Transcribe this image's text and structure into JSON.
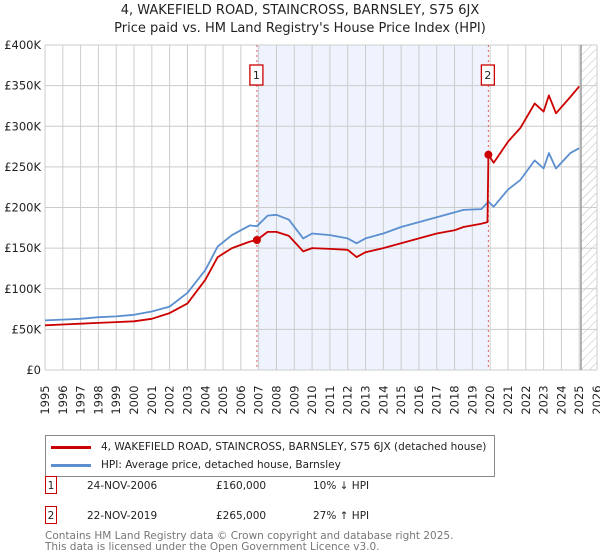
{
  "title": "4, WAKEFIELD ROAD, STAINCROSS, BARNSLEY, S75 6JX",
  "subtitle": "Price paid vs. HM Land Registry's House Price Index (HPI)",
  "colors": {
    "property": "#cc0000",
    "hpi": "#5b8fd0",
    "shade": "#eef3fd"
  },
  "chart_data": {
    "type": "line",
    "xlim": [
      1995,
      2026
    ],
    "ylim": [
      0,
      400000
    ],
    "yticks": [
      0,
      50000,
      100000,
      150000,
      200000,
      250000,
      300000,
      350000,
      400000
    ],
    "ytick_labels": [
      "£0",
      "£50K",
      "£100K",
      "£150K",
      "£200K",
      "£250K",
      "£300K",
      "£350K",
      "£400K"
    ],
    "xtick_labels": [
      "1995",
      "1996",
      "1997",
      "1998",
      "1999",
      "2000",
      "2001",
      "2002",
      "2003",
      "2004",
      "2005",
      "2006",
      "2007",
      "2008",
      "2009",
      "2010",
      "2011",
      "2012",
      "2013",
      "2014",
      "2015",
      "2016",
      "2017",
      "2018",
      "2019",
      "2020",
      "2021",
      "2022",
      "2023",
      "2024",
      "2025",
      "2026"
    ],
    "grid": true,
    "shaded_range": [
      2006.9,
      2019.9
    ],
    "hatched_from": 2025.1,
    "series": [
      {
        "name": "4, WAKEFIELD ROAD, STAINCROSS, BARNSLEY, S75 6JX (detached house)",
        "x": [
          1995,
          1996,
          1997,
          1998,
          1999,
          2000,
          2001,
          2002,
          2003,
          2004,
          2004.7,
          2005.5,
          2006.5,
          2006.9,
          2007.5,
          2008,
          2008.7,
          2009.5,
          2010,
          2011,
          2012,
          2012.5,
          2013,
          2014,
          2015,
          2016,
          2017,
          2018,
          2018.5,
          2019.5,
          2019.85,
          2019.9,
          2020.2,
          2021,
          2021.7,
          2022.5,
          2023,
          2023.3,
          2023.7,
          2024.5,
          2025
        ],
        "y": [
          55000,
          56000,
          57000,
          58000,
          59000,
          60000,
          63000,
          70000,
          82000,
          111000,
          139000,
          150000,
          158000,
          160000,
          170000,
          170000,
          165000,
          146000,
          150000,
          149000,
          148000,
          139000,
          145000,
          150000,
          156000,
          162000,
          168000,
          172000,
          176000,
          180000,
          182000,
          265000,
          255000,
          281000,
          298000,
          328000,
          318000,
          338000,
          316000,
          336000,
          349000
        ]
      },
      {
        "name": "HPI: Average price, detached house, Barnsley",
        "x": [
          1995,
          1996,
          1997,
          1998,
          1999,
          2000,
          2001,
          2002,
          2003,
          2004,
          2004.7,
          2005.5,
          2006.5,
          2006.9,
          2007.5,
          2008,
          2008.7,
          2009.5,
          2010,
          2011,
          2012,
          2012.5,
          2013,
          2014,
          2015,
          2016,
          2017,
          2018,
          2018.5,
          2019.5,
          2019.9,
          2020.2,
          2021,
          2021.7,
          2022.5,
          2023,
          2023.3,
          2023.7,
          2024.5,
          2025
        ],
        "y": [
          61000,
          62000,
          63000,
          65000,
          66000,
          68000,
          72000,
          78000,
          95000,
          123000,
          152000,
          166000,
          178000,
          177000,
          190000,
          191000,
          185000,
          162000,
          168000,
          166000,
          162000,
          156000,
          162000,
          168000,
          176000,
          182000,
          188000,
          194000,
          197000,
          198000,
          207000,
          201000,
          222000,
          234000,
          258000,
          248000,
          267000,
          248000,
          267000,
          273000
        ]
      }
    ],
    "annotations": [
      {
        "label": "1",
        "x": 2006.9,
        "y": 160000
      },
      {
        "label": "2",
        "x": 2019.9,
        "y": 265000
      }
    ]
  },
  "legend": [
    "4, WAKEFIELD ROAD, STAINCROSS, BARNSLEY, S75 6JX (detached house)",
    "HPI: Average price, detached house, Barnsley"
  ],
  "transactions": [
    {
      "num": "1",
      "date": "24-NOV-2006",
      "price": "£160,000",
      "delta": "10% ↓ HPI"
    },
    {
      "num": "2",
      "date": "22-NOV-2019",
      "price": "£265,000",
      "delta": "27% ↑ HPI"
    }
  ],
  "footer": [
    "Contains HM Land Registry data © Crown copyright and database right 2025.",
    "This data is licensed under the Open Government Licence v3.0."
  ]
}
